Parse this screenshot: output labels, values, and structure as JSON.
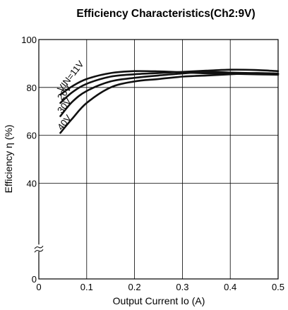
{
  "chart_data": {
    "type": "line",
    "title": "Efficiency Characteristics(Ch2:9V)",
    "xlabel": "Output Current Io (A)",
    "ylabel": "Efficiency η (%)",
    "xlim": [
      0,
      0.5
    ],
    "ylim": [
      0,
      100
    ],
    "axis_break_y": true,
    "x_ticks": [
      "0",
      "0.1",
      "0.2",
      "0.3",
      "0.4",
      "0.5"
    ],
    "x_tick_values": [
      0,
      0.1,
      0.2,
      0.3,
      0.4,
      0.5
    ],
    "y_ticks": [
      "0",
      "40",
      "60",
      "80",
      "100"
    ],
    "y_tick_values": [
      0,
      40,
      60,
      80,
      100
    ],
    "grid": true,
    "series": [
      {
        "name": "VIN=11V",
        "points": [
          [
            0.045,
            77.0
          ],
          [
            0.07,
            80.5
          ],
          [
            0.1,
            83.5
          ],
          [
            0.15,
            86.0
          ],
          [
            0.2,
            86.8
          ],
          [
            0.25,
            86.7
          ],
          [
            0.3,
            86.3
          ],
          [
            0.35,
            85.9
          ],
          [
            0.4,
            85.7
          ],
          [
            0.45,
            85.5
          ],
          [
            0.5,
            85.3
          ]
        ]
      },
      {
        "name": "20V",
        "points": [
          [
            0.045,
            73.5
          ],
          [
            0.07,
            78.0
          ],
          [
            0.1,
            81.5
          ],
          [
            0.15,
            84.5
          ],
          [
            0.2,
            85.5
          ],
          [
            0.25,
            86.0
          ],
          [
            0.3,
            86.5
          ],
          [
            0.35,
            87.0
          ],
          [
            0.4,
            87.4
          ],
          [
            0.45,
            87.3
          ],
          [
            0.5,
            86.8
          ]
        ]
      },
      {
        "name": "30V",
        "points": [
          [
            0.045,
            68.0
          ],
          [
            0.07,
            74.0
          ],
          [
            0.1,
            78.5
          ],
          [
            0.15,
            82.5
          ],
          [
            0.2,
            84.0
          ],
          [
            0.25,
            85.0
          ],
          [
            0.3,
            85.8
          ],
          [
            0.35,
            86.5
          ],
          [
            0.4,
            86.2
          ],
          [
            0.45,
            86.0
          ],
          [
            0.5,
            85.7
          ]
        ]
      },
      {
        "name": "40V",
        "points": [
          [
            0.045,
            61.0
          ],
          [
            0.07,
            67.0
          ],
          [
            0.1,
            73.5
          ],
          [
            0.15,
            80.0
          ],
          [
            0.2,
            82.5
          ],
          [
            0.25,
            83.5
          ],
          [
            0.3,
            84.5
          ],
          [
            0.35,
            85.0
          ],
          [
            0.4,
            85.5
          ],
          [
            0.45,
            86.0
          ],
          [
            0.5,
            85.8
          ]
        ]
      }
    ]
  }
}
